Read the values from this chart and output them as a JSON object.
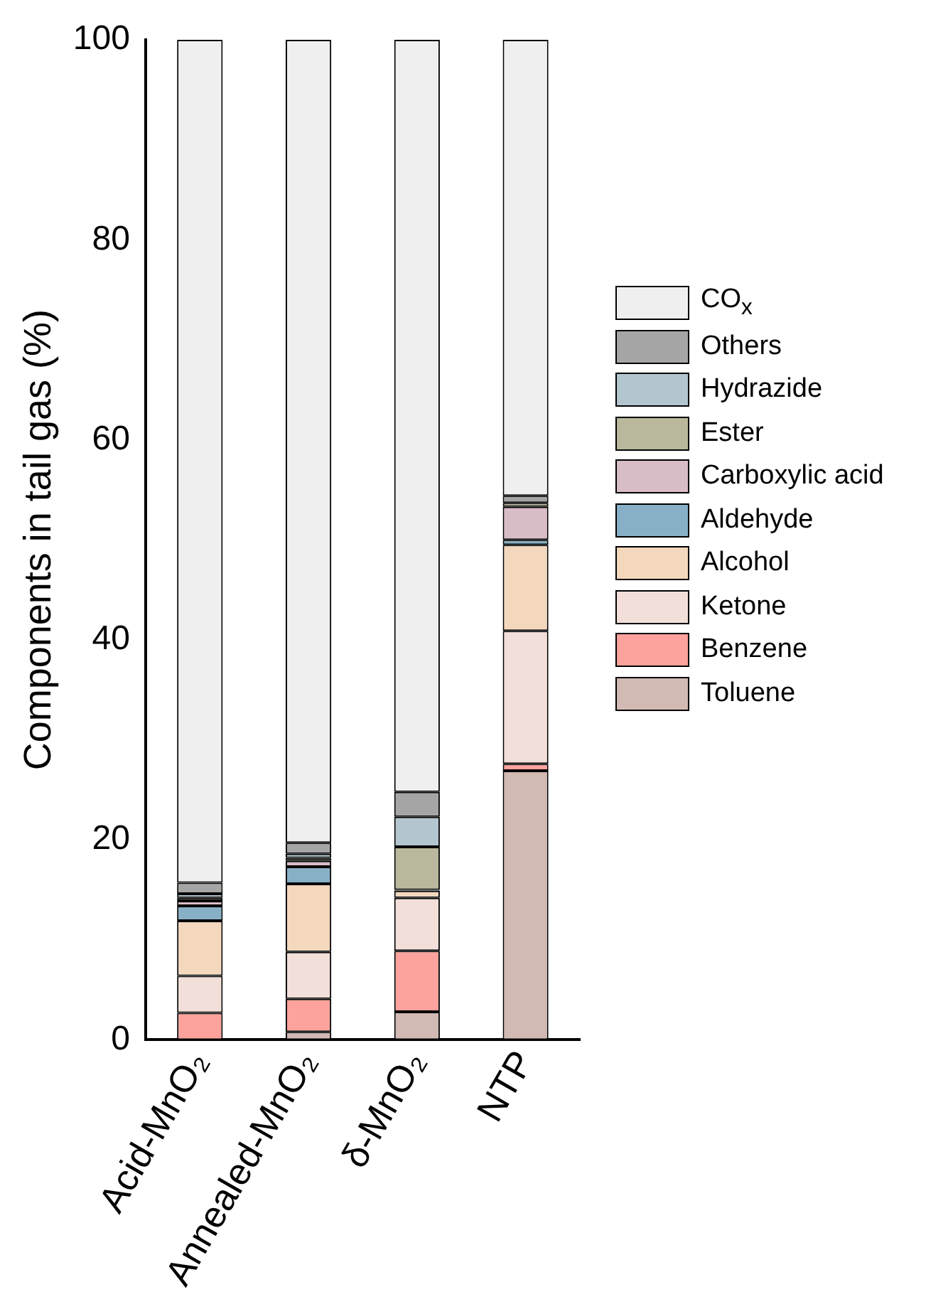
{
  "chart_data": {
    "type": "bar",
    "stacked": true,
    "ylabel": "Components in tail gas (%)",
    "categories": [
      "Acid-MnO₂",
      "Annealed-MnO₂",
      "δ-MnO₂",
      "NTP"
    ],
    "ylim": [
      0,
      100
    ],
    "yticks": [
      0,
      20,
      40,
      60,
      80,
      100
    ],
    "grid": false,
    "legend": "right",
    "series": [
      {
        "name": "Toluene",
        "color": "#d2b9b3",
        "values": [
          0,
          0.8,
          2.8,
          26.9
        ]
      },
      {
        "name": "Benzene",
        "color": "#fda29c",
        "values": [
          2.7,
          3.3,
          6.1,
          0.7
        ]
      },
      {
        "name": "Ketone",
        "color": "#f3dfd9",
        "values": [
          3.7,
          4.7,
          5.3,
          13.3
        ]
      },
      {
        "name": "Alcohol",
        "color": "#f3d8be",
        "values": [
          5.5,
          6.8,
          0.7,
          8.6
        ]
      },
      {
        "name": "Aldehyde",
        "color": "#87b0c6",
        "values": [
          1.5,
          1.7,
          0.1,
          0.5
        ]
      },
      {
        "name": "Carboxylic acid",
        "color": "#d8bcc6",
        "values": [
          0.5,
          0.6,
          0,
          3.3
        ]
      },
      {
        "name": "Ester",
        "color": "#bab89c",
        "values": [
          0.3,
          0.3,
          4.3,
          0.4
        ]
      },
      {
        "name": "Hydrazide",
        "color": "#b3c6d0",
        "values": [
          0.4,
          0.4,
          3.0,
          null
        ]
      },
      {
        "name": "Others",
        "color": "#a5a5a5",
        "values": [
          1.1,
          1.1,
          2.5,
          0.7
        ]
      },
      {
        "name": "CO$_{x}$",
        "color": "#efefef",
        "values": [
          84.3,
          80.3,
          75.2,
          45.6
        ]
      }
    ]
  }
}
